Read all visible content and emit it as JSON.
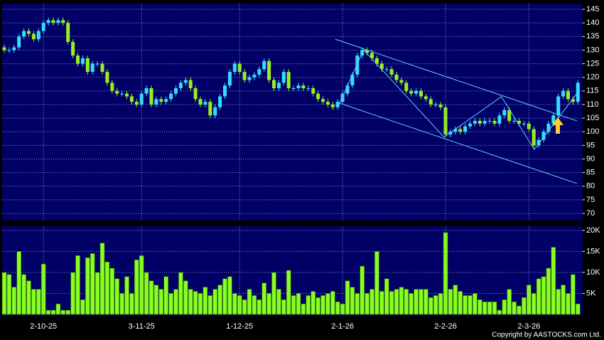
{
  "chart_data": [
    {
      "type": "candlestick",
      "up_color": "#33ddff",
      "down_color": "#99ee22",
      "open": [
        131,
        130,
        130,
        131,
        135,
        137,
        136,
        134,
        137,
        140,
        141,
        140,
        141,
        140,
        133,
        128,
        125,
        127,
        122,
        125,
        125,
        122,
        118,
        115,
        114,
        114,
        113,
        111,
        110,
        114,
        116,
        110,
        112,
        111,
        112,
        114,
        116,
        118,
        119,
        116,
        112,
        110,
        111,
        106,
        109,
        113,
        117,
        122,
        125,
        122,
        119,
        120,
        121,
        123,
        126,
        119,
        116,
        118,
        122,
        116,
        116,
        117,
        116,
        116,
        114,
        112,
        111,
        110,
        109,
        111,
        114,
        117,
        121,
        128,
        130,
        129,
        127,
        125,
        123,
        123,
        121,
        119,
        118,
        115,
        114,
        115,
        113,
        112,
        110,
        110,
        109,
        99,
        100,
        101,
        100,
        102,
        103,
        104,
        103,
        104,
        104,
        103,
        106,
        108,
        104,
        104,
        103,
        103,
        101,
        95,
        97,
        100,
        103,
        106,
        113,
        115,
        112,
        111
      ],
      "high": [
        132,
        131,
        132,
        136,
        138,
        138,
        137,
        138,
        141,
        142,
        142,
        142,
        142,
        141,
        134,
        129,
        128,
        128,
        126,
        126,
        126,
        123,
        119,
        116,
        115,
        115,
        114,
        112,
        115,
        117,
        117,
        113,
        113,
        113,
        115,
        117,
        119,
        120,
        120,
        117,
        113,
        112,
        112,
        110,
        114,
        118,
        123,
        126,
        126,
        123,
        121,
        122,
        124,
        127,
        127,
        120,
        119,
        123,
        123,
        117,
        118,
        118,
        117,
        117,
        115,
        113,
        112,
        111,
        112,
        115,
        118,
        122,
        129,
        131,
        131,
        130,
        128,
        126,
        124,
        124,
        122,
        120,
        119,
        116,
        116,
        116,
        114,
        113,
        111,
        111,
        110,
        101,
        102,
        102,
        103,
        104,
        105,
        105,
        105,
        105,
        105,
        107,
        109,
        109,
        105,
        105,
        104,
        104,
        102,
        98,
        101,
        104,
        107,
        114,
        116,
        116,
        113,
        119
      ],
      "low": [
        129,
        129,
        129,
        130,
        134,
        135,
        133,
        133,
        136,
        139,
        139,
        139,
        139,
        132,
        127,
        124,
        124,
        121,
        121,
        124,
        121,
        117,
        114,
        113,
        113,
        112,
        110,
        109,
        109,
        113,
        109,
        109,
        110,
        110,
        111,
        113,
        115,
        117,
        115,
        111,
        109,
        109,
        105,
        105,
        108,
        112,
        116,
        121,
        121,
        118,
        118,
        119,
        120,
        122,
        118,
        115,
        115,
        117,
        115,
        115,
        115,
        115,
        115,
        113,
        111,
        110,
        109,
        108,
        108,
        110,
        113,
        116,
        120,
        127,
        128,
        126,
        124,
        122,
        122,
        120,
        118,
        117,
        114,
        113,
        113,
        112,
        111,
        109,
        109,
        108,
        98,
        98,
        99,
        99,
        99,
        101,
        102,
        102,
        102,
        103,
        102,
        102,
        105,
        103,
        103,
        102,
        102,
        100,
        94,
        94,
        96,
        99,
        102,
        105,
        112,
        111,
        110,
        110
      ],
      "close": [
        130,
        130,
        131,
        135,
        137,
        136,
        134,
        137,
        140,
        141,
        140,
        141,
        140,
        133,
        128,
        125,
        127,
        122,
        125,
        125,
        122,
        118,
        115,
        114,
        114,
        113,
        111,
        110,
        114,
        116,
        110,
        112,
        111,
        112,
        114,
        116,
        118,
        119,
        116,
        112,
        110,
        111,
        106,
        109,
        113,
        117,
        122,
        125,
        122,
        119,
        120,
        121,
        123,
        126,
        119,
        116,
        118,
        122,
        116,
        116,
        117,
        116,
        116,
        114,
        112,
        111,
        110,
        109,
        111,
        114,
        117,
        121,
        128,
        130,
        129,
        127,
        125,
        123,
        123,
        121,
        119,
        118,
        115,
        114,
        115,
        113,
        112,
        110,
        110,
        109,
        99,
        100,
        101,
        100,
        102,
        103,
        104,
        103,
        104,
        104,
        103,
        106,
        108,
        104,
        104,
        103,
        103,
        101,
        95,
        97,
        100,
        103,
        106,
        113,
        115,
        112,
        111,
        118
      ],
      "ylim": [
        67.4,
        147.1
      ],
      "yticks": [
        70,
        75,
        80,
        85,
        90,
        95,
        100,
        105,
        110,
        115,
        120,
        125,
        130,
        135,
        140,
        145
      ],
      "grid": true,
      "trendlines": [
        {
          "color": "#66ccff",
          "x": [
            67.5,
            116.8
          ],
          "y": [
            134.0,
            104.0
          ]
        },
        {
          "color": "#66ccff",
          "x": [
            68.4,
            116.8
          ],
          "y": [
            110.5,
            81.0
          ]
        },
        {
          "color": "#66ccff",
          "x": [
            68.4,
            73.3,
            89.7,
            101.4,
            108.1,
            116.8
          ],
          "y": [
            110.5,
            130.1,
            98.0,
            112.9,
            93.5,
            114.1
          ]
        }
      ]
    },
    {
      "type": "bar",
      "color": "#88ff22",
      "categories": [
        null,
        null,
        null,
        null,
        null,
        null,
        null,
        null,
        "2-10-25",
        null,
        null,
        null,
        null,
        null,
        null,
        null,
        null,
        null,
        null,
        null,
        null,
        null,
        null,
        null,
        null,
        null,
        null,
        null,
        "3-11-25",
        null,
        null,
        null,
        null,
        null,
        null,
        null,
        null,
        null,
        null,
        null,
        null,
        null,
        null,
        null,
        null,
        null,
        null,
        null,
        "1-12-25",
        null,
        null,
        null,
        null,
        null,
        null,
        null,
        null,
        null,
        null,
        null,
        null,
        null,
        null,
        null,
        null,
        null,
        null,
        null,
        null,
        "2-1-26",
        null,
        null,
        null,
        null,
        null,
        null,
        null,
        null,
        null,
        null,
        null,
        null,
        null,
        null,
        null,
        null,
        null,
        null,
        null,
        null,
        "2-2-26",
        null,
        null,
        null,
        null,
        null,
        null,
        null,
        null,
        null,
        null,
        null,
        null,
        null,
        null,
        null,
        null,
        "2-3-26",
        null,
        null,
        null,
        null,
        null,
        null,
        null,
        null,
        null,
        null
      ],
      "values": [
        10000,
        9500,
        6500,
        15000,
        9500,
        8000,
        6000,
        6000,
        12000,
        1000,
        1000,
        2500,
        1000,
        1000,
        10000,
        14000,
        3500,
        13500,
        14500,
        10000,
        17000,
        12500,
        11000,
        8500,
        5000,
        9000,
        5000,
        13000,
        14000,
        10000,
        8000,
        7000,
        6000,
        9000,
        5000,
        6000,
        10000,
        8000,
        6000,
        5500,
        5000,
        6500,
        4500,
        6000,
        7000,
        8500,
        9000,
        5000,
        4500,
        3500,
        6000,
        4500,
        3500,
        7500,
        5000,
        10000,
        6000,
        3500,
        10500,
        4500,
        5000,
        2500,
        4500,
        5500,
        4000,
        4500,
        5000,
        5500,
        3000,
        2500,
        8000,
        6500,
        5000,
        11500,
        5000,
        6000,
        15000,
        5500,
        8500,
        5500,
        6000,
        6500,
        6000,
        5000,
        6000,
        6000,
        6000,
        4000,
        4500,
        5000,
        19500,
        6000,
        7000,
        5500,
        4500,
        4500,
        5000,
        3500,
        3000,
        3000,
        3000,
        1000,
        3500,
        6000,
        3000,
        2000,
        4000,
        7000,
        5000,
        8500,
        9000,
        11000,
        16000,
        6000,
        7000,
        5000,
        9500,
        2500
      ],
      "ylim": [
        0,
        20500
      ],
      "yticks": [
        {
          "value": 5000,
          "label": "5K"
        },
        {
          "value": 10000,
          "label": "10K"
        },
        {
          "value": 15000,
          "label": "15K"
        },
        {
          "value": 20000,
          "label": "20K"
        }
      ],
      "grid": true
    }
  ],
  "copyright": "Copyright by AASTOCKS.com Ltd."
}
